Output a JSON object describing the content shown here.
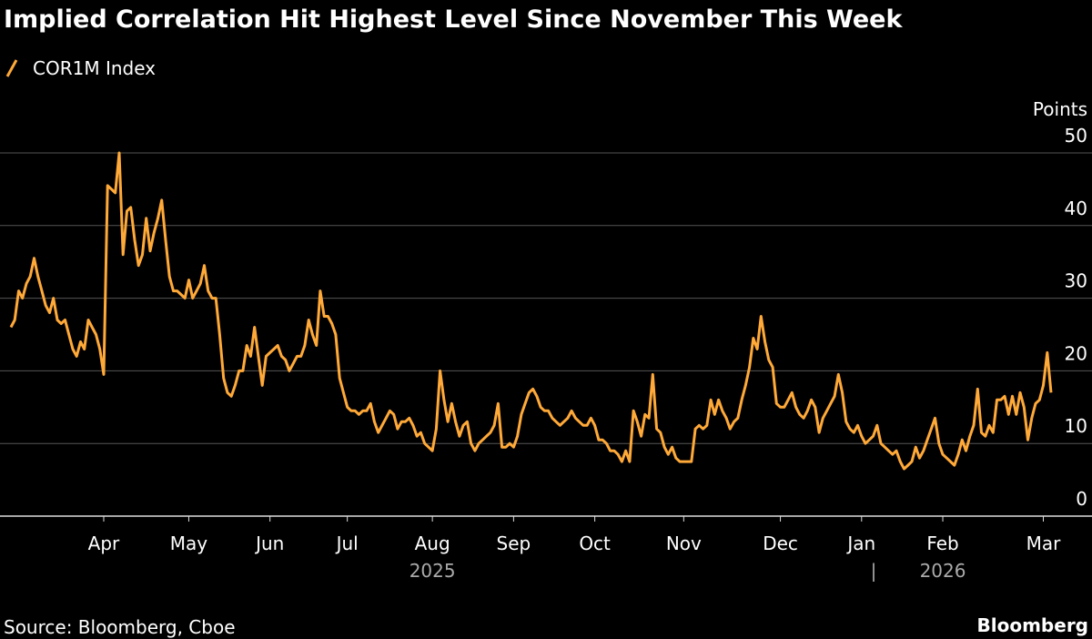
{
  "chart_data": {
    "type": "line",
    "title": "Implied Correlation Hit Highest Level Since November This Week",
    "y_label": "Points",
    "source": "Source: Bloomberg, Cboe",
    "brand": "Bloomberg",
    "year_labels": [
      "2025",
      "2026"
    ],
    "categories": [
      null,
      null,
      null,
      null,
      null,
      null,
      null,
      null,
      null,
      null,
      null,
      null,
      null,
      null,
      null,
      null,
      null,
      null,
      null,
      null,
      null,
      null,
      null,
      null,
      "Apr",
      null,
      null,
      null,
      null,
      null,
      null,
      null,
      null,
      null,
      null,
      null,
      null,
      null,
      null,
      null,
      null,
      null,
      null,
      null,
      null,
      null,
      "May",
      null,
      null,
      null,
      null,
      null,
      null,
      null,
      null,
      null,
      null,
      null,
      null,
      null,
      null,
      null,
      null,
      null,
      null,
      null,
      null,
      "Jun",
      null,
      null,
      null,
      null,
      null,
      null,
      null,
      null,
      null,
      null,
      null,
      null,
      null,
      null,
      null,
      null,
      null,
      null,
      null,
      "Jul",
      null,
      null,
      null,
      null,
      null,
      null,
      null,
      null,
      null,
      null,
      null,
      null,
      null,
      null,
      null,
      null,
      null,
      null,
      null,
      null,
      null,
      "Aug",
      null,
      null,
      null,
      null,
      null,
      null,
      null,
      null,
      null,
      null,
      null,
      null,
      null,
      null,
      null,
      null,
      null,
      null,
      null,
      null,
      "Sep",
      null,
      null,
      null,
      null,
      null,
      null,
      null,
      null,
      null,
      null,
      null,
      null,
      null,
      null,
      null,
      null,
      null,
      null,
      null,
      null,
      "Oct",
      null,
      null,
      null,
      null,
      null,
      null,
      null,
      null,
      null,
      null,
      null,
      null,
      null,
      null,
      null,
      null,
      null,
      null,
      null,
      null,
      null,
      null,
      "Nov",
      null,
      null,
      null,
      null,
      null,
      null,
      null,
      null,
      null,
      null,
      null,
      null,
      null,
      null,
      null,
      null,
      null,
      null,
      null,
      null,
      null,
      null,
      null,
      null,
      "Dec",
      null,
      null,
      null,
      null,
      null,
      null,
      null,
      null,
      null,
      null,
      null,
      null,
      null,
      null,
      null,
      null,
      null,
      null,
      null,
      null,
      "Jan",
      null,
      null,
      null,
      null,
      null,
      null,
      null,
      null,
      null,
      null,
      null,
      null,
      null,
      null,
      null,
      null,
      null,
      null,
      null,
      null,
      "Feb",
      null,
      null,
      null,
      null,
      null,
      null,
      null,
      null,
      null,
      null,
      null,
      null,
      null,
      null,
      null,
      null,
      null,
      null,
      null,
      null,
      null,
      null,
      null,
      null,
      null,
      "Mar",
      null,
      null
    ],
    "series": [
      {
        "name": "COR1M Index",
        "color": "#ffa938",
        "values": [
          26,
          27,
          31,
          30,
          32,
          33,
          35.5,
          33,
          31,
          29,
          28,
          30,
          27,
          26.5,
          27,
          25,
          23,
          22,
          24,
          23,
          27,
          26,
          25,
          23,
          19.5,
          45.5,
          45,
          44.5,
          50,
          36,
          42,
          42.5,
          38,
          34.5,
          36,
          41,
          36.5,
          39,
          41,
          43.5,
          38,
          33,
          31,
          31,
          30.5,
          30,
          32.5,
          30,
          31,
          32,
          34.5,
          31,
          30,
          30,
          25,
          19,
          17,
          16.5,
          18,
          20,
          20,
          23.5,
          22,
          26,
          22,
          18,
          22,
          22.5,
          23,
          23.5,
          22,
          21.5,
          20,
          21,
          22,
          22,
          23.5,
          27,
          25,
          23.5,
          31,
          27.5,
          27.5,
          26.5,
          25,
          19,
          17,
          15,
          14.5,
          14.5,
          14,
          14.5,
          14.5,
          15.5,
          13,
          11.5,
          12.5,
          13.5,
          14.5,
          14,
          12,
          13,
          13,
          13.5,
          12.5,
          11,
          11.5,
          10,
          9.5,
          9,
          12,
          20,
          16,
          13,
          15.5,
          13,
          11,
          12.5,
          13,
          10,
          9,
          10,
          10.5,
          11,
          11.5,
          12.5,
          15.5,
          9.5,
          9.5,
          10,
          9.5,
          11,
          14,
          15.5,
          17,
          17.5,
          16.5,
          15,
          14.5,
          14.5,
          13.5,
          13,
          12.5,
          13,
          13.5,
          14.5,
          13.5,
          13,
          12.5,
          12.5,
          13.5,
          12.5,
          10.5,
          10.5,
          10,
          9,
          9,
          8.5,
          7.5,
          9,
          7.5,
          14.5,
          13,
          11,
          14,
          13.5,
          19.5,
          12,
          11.5,
          9.5,
          8.5,
          9.5,
          8,
          7.5,
          7.5,
          7.5,
          7.5,
          12,
          12.5,
          12,
          12.5,
          16,
          14,
          16,
          14.5,
          13.5,
          12,
          13,
          13.5,
          16,
          18,
          20.5,
          24.5,
          23,
          27.5,
          24,
          21.5,
          20.5,
          15.5,
          15,
          15,
          16,
          17,
          15,
          14,
          13.5,
          14.5,
          16,
          15,
          11.5,
          13.5,
          14.5,
          15.5,
          16.5,
          19.5,
          17,
          13,
          12,
          11.5,
          12.5,
          11,
          10,
          10.5,
          11,
          12.5,
          10,
          9.5,
          9,
          8.5,
          9,
          7.5,
          6.5,
          7,
          7.5,
          9.5,
          8,
          9,
          10.5,
          12,
          13.5,
          10,
          8.5,
          8,
          7.5,
          7,
          8.5,
          10.5,
          9,
          11,
          12.5,
          17.5,
          11.5,
          11,
          12.5,
          11.5,
          16,
          16,
          16.5,
          14,
          16.5,
          14,
          17,
          15,
          10.5,
          13.5,
          15.5,
          16,
          18,
          22.5,
          17
        ]
      }
    ],
    "ylim": [
      0,
      50
    ],
    "yticks": [
      0,
      10,
      20,
      30,
      40,
      50
    ],
    "grid": true
  }
}
